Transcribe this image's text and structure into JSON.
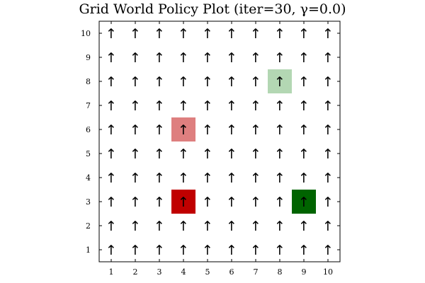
{
  "chart_data": {
    "type": "heatmap",
    "title": "Grid World Policy Plot (iter=30, γ=0.0)",
    "xlabel": "",
    "ylabel": "",
    "xlim": [
      0.5,
      10.5
    ],
    "ylim": [
      0.5,
      10.5
    ],
    "x_ticks": [
      "1",
      "2",
      "3",
      "4",
      "5",
      "6",
      "7",
      "8",
      "9",
      "10"
    ],
    "y_ticks": [
      "1",
      "2",
      "3",
      "4",
      "5",
      "6",
      "7",
      "8",
      "9",
      "10"
    ],
    "grid": false,
    "policy": {
      "arrow_symbol": "↑",
      "action": "up",
      "cells": "all 10x10 grid cells"
    },
    "special_cells": [
      {
        "x": 8,
        "y": 8,
        "color": "#b3d7b3"
      },
      {
        "x": 4,
        "y": 6,
        "color": "#de7f7f"
      },
      {
        "x": 4,
        "y": 3,
        "color": "#c00000"
      },
      {
        "x": 9,
        "y": 3,
        "color": "#006400"
      }
    ]
  }
}
